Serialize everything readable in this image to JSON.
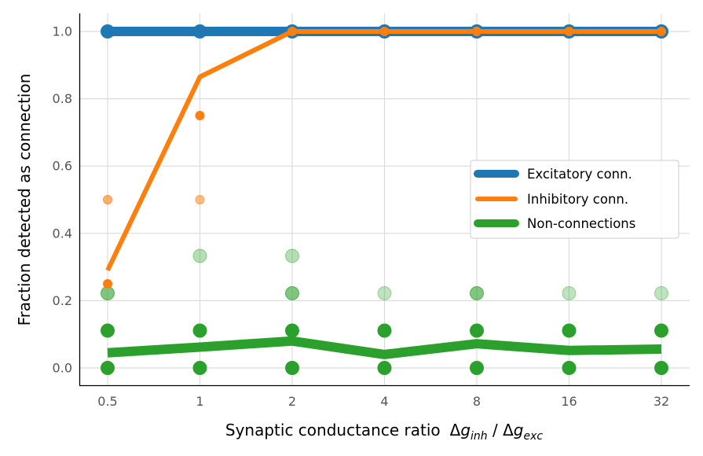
{
  "chart_data": {
    "type": "line",
    "title": "",
    "xlabel_main": "Synaptic conductance ratio",
    "xlabel_math": "Δg_inh / Δg_exc",
    "xlabel_delta": "Δ",
    "xlabel_g": "g",
    "xlabel_sub_inh": "inh",
    "xlabel_sep": " / ",
    "xlabel_sub_exc": "exc",
    "ylabel": "Fraction detected as connection",
    "x_scale": "categorical",
    "categories": [
      "0.5",
      "1",
      "2",
      "4",
      "8",
      "16",
      "32"
    ],
    "ylim": [
      -0.05,
      1.05
    ],
    "yticks": [
      "0.0",
      "0.2",
      "0.4",
      "0.6",
      "0.8",
      "1.0"
    ],
    "grid": true,
    "legend_position": "center-right",
    "series": [
      {
        "name": "Excitatory conn.",
        "color": "#1f77b4",
        "mean": [
          1.0,
          1.0,
          1.0,
          1.0,
          1.0,
          1.0,
          1.0
        ],
        "points": [
          {
            "x": "0.5",
            "y": 1.0
          },
          {
            "x": "1",
            "y": 1.0
          },
          {
            "x": "2",
            "y": 1.0
          },
          {
            "x": "4",
            "y": 1.0
          },
          {
            "x": "8",
            "y": 1.0
          },
          {
            "x": "16",
            "y": 1.0
          },
          {
            "x": "32",
            "y": 1.0
          }
        ]
      },
      {
        "name": "Inhibitory conn.",
        "color": "#ff7f0e",
        "mean": [
          0.29,
          0.865,
          1.0,
          1.0,
          1.0,
          1.0,
          1.0
        ],
        "points": [
          {
            "x": "0.5",
            "y": 0.5,
            "alpha": 0.6
          },
          {
            "x": "0.5",
            "y": 0.25,
            "alpha": 1.0
          },
          {
            "x": "1",
            "y": 0.75,
            "alpha": 1.0
          },
          {
            "x": "1",
            "y": 0.5,
            "alpha": 0.5
          },
          {
            "x": "2",
            "y": 1.0,
            "alpha": 1.0
          },
          {
            "x": "4",
            "y": 1.0,
            "alpha": 1.0
          },
          {
            "x": "8",
            "y": 1.0,
            "alpha": 1.0
          },
          {
            "x": "16",
            "y": 1.0,
            "alpha": 1.0
          },
          {
            "x": "32",
            "y": 1.0,
            "alpha": 1.0
          }
        ]
      },
      {
        "name": "Non-connections",
        "color": "#2ca02c",
        "mean": [
          0.045,
          0.062,
          0.08,
          0.04,
          0.072,
          0.052,
          0.056
        ],
        "points": [
          {
            "x": "0.5",
            "y": 0.0,
            "alpha": 1.0
          },
          {
            "x": "0.5",
            "y": 0.111,
            "alpha": 1.0
          },
          {
            "x": "0.5",
            "y": 0.222,
            "alpha": 0.6
          },
          {
            "x": "1",
            "y": 0.0,
            "alpha": 1.0
          },
          {
            "x": "1",
            "y": 0.111,
            "alpha": 1.0
          },
          {
            "x": "1",
            "y": 0.333,
            "alpha": 0.35
          },
          {
            "x": "2",
            "y": 0.0,
            "alpha": 1.0
          },
          {
            "x": "2",
            "y": 0.111,
            "alpha": 1.0
          },
          {
            "x": "2",
            "y": 0.222,
            "alpha": 0.6
          },
          {
            "x": "2",
            "y": 0.333,
            "alpha": 0.35
          },
          {
            "x": "4",
            "y": 0.0,
            "alpha": 1.0
          },
          {
            "x": "4",
            "y": 0.111,
            "alpha": 1.0
          },
          {
            "x": "4",
            "y": 0.222,
            "alpha": 0.3
          },
          {
            "x": "8",
            "y": 0.0,
            "alpha": 1.0
          },
          {
            "x": "8",
            "y": 0.111,
            "alpha": 1.0
          },
          {
            "x": "8",
            "y": 0.222,
            "alpha": 0.6
          },
          {
            "x": "16",
            "y": 0.0,
            "alpha": 1.0
          },
          {
            "x": "16",
            "y": 0.111,
            "alpha": 1.0
          },
          {
            "x": "16",
            "y": 0.222,
            "alpha": 0.3
          },
          {
            "x": "32",
            "y": 0.0,
            "alpha": 1.0
          },
          {
            "x": "32",
            "y": 0.111,
            "alpha": 1.0
          },
          {
            "x": "32",
            "y": 0.222,
            "alpha": 0.3
          }
        ]
      }
    ]
  }
}
